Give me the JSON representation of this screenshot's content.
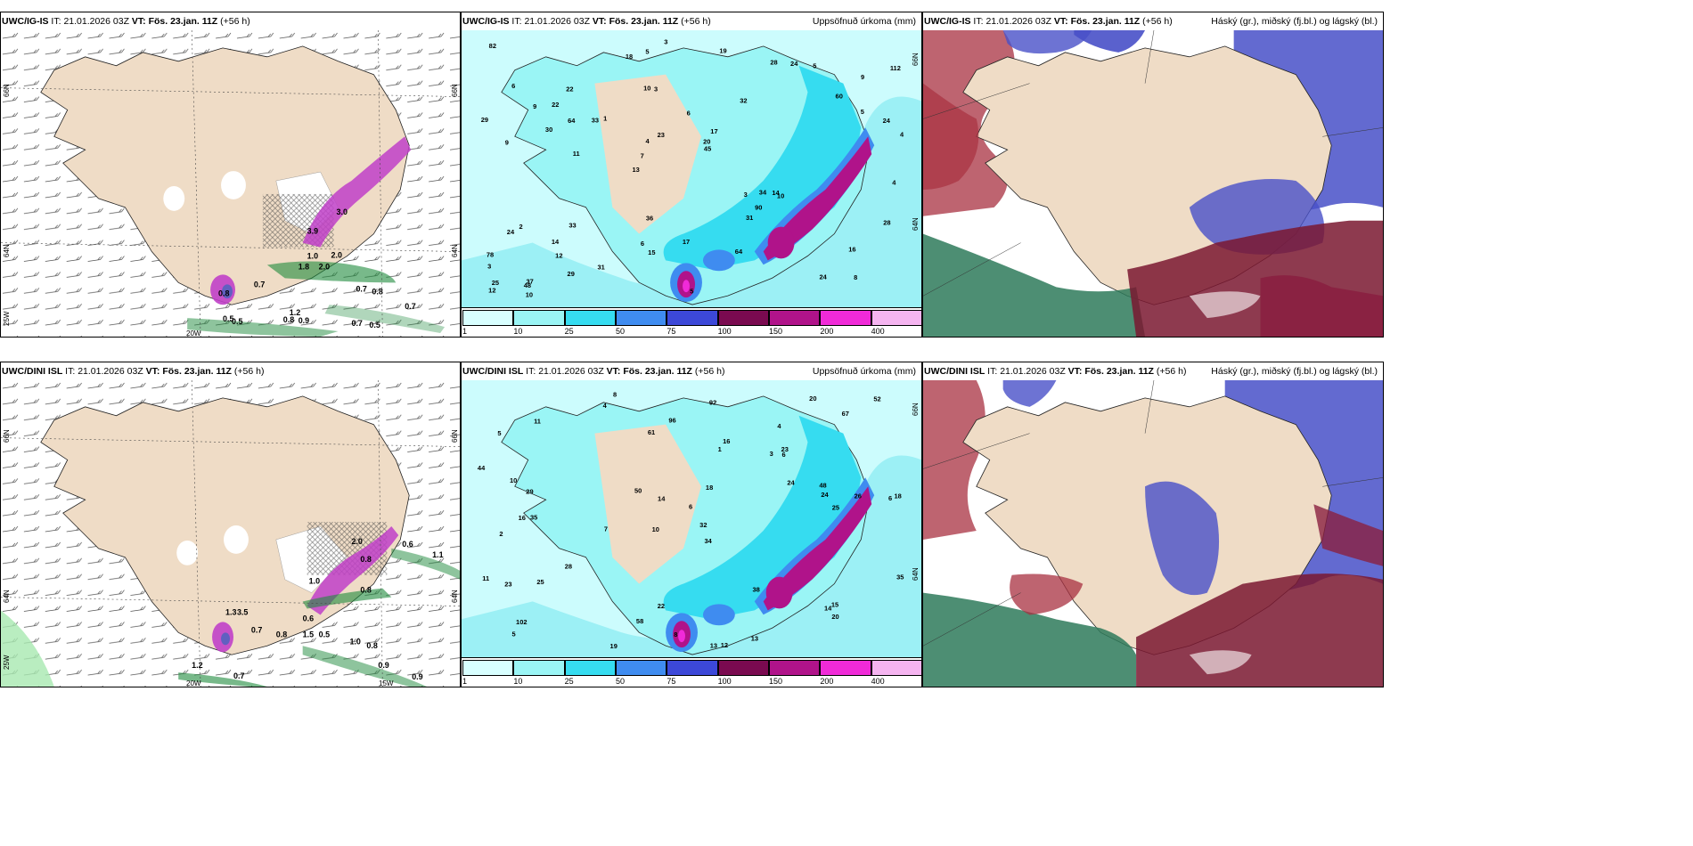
{
  "row_top": {
    "wind": {
      "model": "UWC/IG-IS",
      "it_label": "IT:",
      "it_value": "21.01.2026 03Z",
      "vt_label": "VT:",
      "vt_value": "Fös. 23.jan. 11Z",
      "lead": "(+56 h)",
      "right_title": "",
      "lat_labels": [
        "66N",
        "64N"
      ],
      "lon_labels": [
        "25W",
        "20W"
      ],
      "right_lat": [
        "66N",
        "64N"
      ],
      "values": [
        "2.0",
        "3.9",
        "1.8",
        "0.8",
        "0.7",
        "0.7",
        "0.8",
        "0.7",
        "0.5",
        "0.5",
        "0.8",
        "0.9",
        "0.7",
        "0.5",
        "1.0",
        "2.0",
        "3.0",
        "1.2"
      ]
    },
    "precip": {
      "model": "UWC/IG-IS",
      "it_label": "IT:",
      "it_value": "21.01.2026 03Z",
      "vt_label": "VT:",
      "vt_value": "Fös. 23.jan. 11Z",
      "lead": "(+56 h)",
      "right_title": "Uppsöfnuð úrkoma (mm)",
      "right_lat": [
        "66N",
        "64N"
      ],
      "values": [
        "8",
        "9",
        "9",
        "13",
        "32",
        "37",
        "10",
        "6",
        "2",
        "1",
        "3",
        "12",
        "3",
        "17",
        "10",
        "6",
        "5",
        "4",
        "3",
        "5",
        "7",
        "6",
        "4",
        "22",
        "28",
        "33",
        "24",
        "16",
        "14",
        "5",
        "33",
        "30",
        "31",
        "29",
        "24",
        "20",
        "25",
        "15",
        "45",
        "24",
        "60",
        "112",
        "90",
        "64",
        "14",
        "10",
        "12",
        "17",
        "5",
        "3",
        "11",
        "29",
        "22",
        "24",
        "48",
        "19",
        "18",
        "23",
        "28",
        "36",
        "31",
        "34",
        "64",
        "78",
        "82",
        "9",
        "4"
      ]
    },
    "cloud": {
      "model": "UWC/IG-IS",
      "it_label": "IT:",
      "it_value": "21.01.2026 03Z",
      "vt_label": "VT:",
      "vt_value": "Fös. 23.jan. 11Z",
      "lead": "(+56 h)",
      "right_title": "Háský (gr.), miðský (fj.bl.) og lágský (bl.)"
    }
  },
  "row_bottom": {
    "wind": {
      "model": "UWC/DINI ISL",
      "it_label": "IT:",
      "it_value": "21.01.2026 03Z",
      "vt_label": "VT:",
      "vt_value": "Fös. 23.jan. 11Z",
      "lead": "(+56 h)",
      "right_title": "",
      "lat_labels": [
        "66N",
        "64N"
      ],
      "lon_labels": [
        "25W",
        "20W",
        "15W"
      ],
      "right_lat": [
        "66N",
        "64N"
      ],
      "values": [
        "1.3",
        "3.5",
        "1.0",
        "0.7",
        "0.8",
        "0.6",
        "1.5",
        "0.5",
        "1.0",
        "0.8",
        "0.9",
        "0.9",
        "1.2",
        "0.7",
        "0.6",
        "1.1",
        "0.8",
        "2.0",
        "0.8"
      ]
    },
    "precip": {
      "model": "UWC/DINI ISL",
      "it_label": "IT:",
      "it_value": "21.01.2026 03Z",
      "vt_label": "VT:",
      "vt_value": "Fös. 23.jan. 11Z",
      "lead": "(+56 h)",
      "right_title": "Uppsöfnuð úrkoma (mm)",
      "right_lat": [
        "66N",
        "64N"
      ],
      "values": [
        "8",
        "4",
        "6",
        "10",
        "34",
        "35",
        "5",
        "3",
        "2",
        "1",
        "6",
        "5",
        "4",
        "7",
        "13",
        "12",
        "22",
        "20",
        "24",
        "28",
        "29",
        "16",
        "18",
        "26",
        "11",
        "10",
        "14",
        "24",
        "15",
        "23",
        "14",
        "16",
        "25",
        "50",
        "38",
        "35",
        "48",
        "58",
        "52",
        "96",
        "102",
        "19",
        "13",
        "11",
        "8",
        "6",
        "20",
        "23",
        "44",
        "32",
        "61",
        "25",
        "18",
        "67",
        "92"
      ]
    },
    "cloud": {
      "model": "UWC/DINI ISL",
      "it_label": "IT:",
      "it_value": "21.01.2026 03Z",
      "vt_label": "VT:",
      "vt_value": "Fös. 23.jan. 11Z",
      "lead": "(+56 h)",
      "right_title": "Háský (gr.), miðský (fj.bl.) og lágský (bl.)"
    }
  },
  "colorbar": {
    "labels": [
      "1",
      "10",
      "25",
      "50",
      "75",
      "100",
      "150",
      "200",
      "400"
    ],
    "colors": [
      "#d8ffff",
      "#9af5f5",
      "#36dcf0",
      "#3f8cf0",
      "#3c48d8",
      "#7a0a50",
      "#b0138a",
      "#f02ad8",
      "#f5b4f0"
    ]
  },
  "colors": {
    "land": "#efdcc6",
    "sea_precip": "#9cf0f5",
    "green_wind": "#1e8a3c",
    "purple_wind": "#c040c8",
    "high_cloud": "#2e7a5a",
    "mid_cloud": "#a83040",
    "low_cloud": "#4850c8"
  }
}
